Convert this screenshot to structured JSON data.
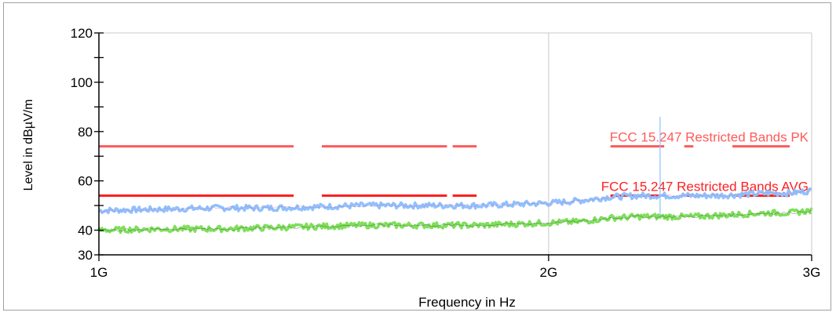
{
  "chart_data": {
    "type": "line",
    "title": "",
    "xlabel": "Frequency in Hz",
    "ylabel": "Level in dBµV/m",
    "x_scale": "log",
    "xlim": [
      1000000000,
      3000000000
    ],
    "ylim": [
      30,
      120
    ],
    "y_ticks": [
      30,
      40,
      60,
      80,
      100,
      120
    ],
    "x_ticks": [
      {
        "value": 1000000000,
        "label": "1G"
      },
      {
        "value": 2000000000,
        "label": "2G"
      },
      {
        "value": 3000000000,
        "label": "3G"
      }
    ],
    "grid": "vertical-at-x-ticks",
    "limit_lines": [
      {
        "name": "FCC 15.247 Restricted Bands PK",
        "level": 74,
        "color": "#ff5a5a",
        "segments_ghz": [
          [
            1.0,
            1.35
          ],
          [
            1.41,
            1.71
          ],
          [
            1.725,
            1.79
          ],
          [
            2.2,
            2.39
          ],
          [
            2.465,
            2.5
          ],
          [
            2.655,
            2.9
          ]
        ]
      },
      {
        "name": "FCC 15.247 Restricted Bands AVG",
        "level": 54,
        "color": "#ff2020",
        "segments_ghz": [
          [
            1.0,
            1.35
          ],
          [
            1.41,
            1.71
          ],
          [
            1.725,
            1.79
          ],
          [
            2.2,
            2.39
          ],
          [
            2.465,
            2.5
          ],
          [
            2.655,
            2.9
          ]
        ]
      }
    ],
    "series": [
      {
        "color": "#8fc1ff",
        "x_ghz": [
          1.0,
          1.1,
          1.2,
          1.3,
          1.4,
          1.5,
          1.6,
          1.7,
          1.8,
          1.9,
          2.0,
          2.1,
          2.2,
          2.3,
          2.4,
          2.5,
          2.6,
          2.7,
          2.8,
          2.9,
          3.0
        ],
        "y": [
          48,
          48.5,
          49,
          49,
          49.5,
          50,
          50,
          50,
          50,
          50.5,
          51,
          52,
          53.5,
          54,
          54,
          54,
          54,
          54.5,
          55,
          55,
          56
        ]
      },
      {
        "color": "#7ee05a",
        "x_ghz": [
          1.0,
          1.1,
          1.2,
          1.3,
          1.4,
          1.5,
          1.6,
          1.7,
          1.8,
          1.9,
          2.0,
          2.1,
          2.2,
          2.3,
          2.4,
          2.5,
          2.6,
          2.7,
          2.8,
          2.9,
          3.0
        ],
        "y": [
          40,
          40.5,
          40.5,
          41,
          41.5,
          42,
          42,
          42,
          42,
          42.5,
          43,
          43.5,
          45,
          45.5,
          45.5,
          45.5,
          46,
          46.5,
          47,
          47,
          48
        ]
      }
    ],
    "marker": {
      "x_ghz": 2.375,
      "y_top": 86,
      "color": "#8fc1ff"
    }
  }
}
